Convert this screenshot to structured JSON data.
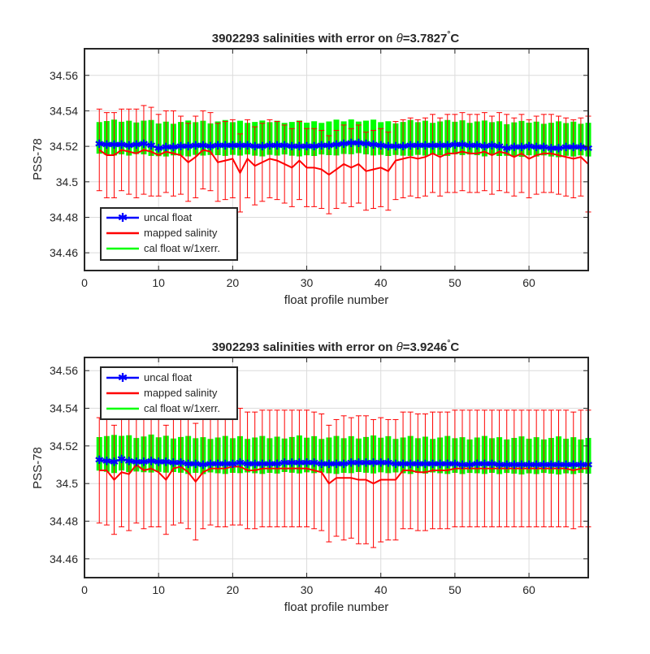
{
  "chart_data": [
    {
      "type": "line",
      "title_prefix": "3902293 salinities with error on ",
      "title_theta": "θ",
      "title_value": "=3.7827",
      "title_degree": "°",
      "title_unit": "C",
      "xlabel": "float profile number",
      "ylabel": "PSS-78",
      "xlim": [
        0,
        68
      ],
      "ylim": [
        34.45,
        34.575
      ],
      "xticks": [
        "0",
        "10",
        "20",
        "30",
        "40",
        "50",
        "60"
      ],
      "yticks": [
        "34.46",
        "34.48",
        "34.5",
        "34.52",
        "34.54",
        "34.56"
      ],
      "grid": true,
      "legend_position": "bottom-left",
      "legend": [
        "uncal float",
        "mapped salinity",
        "cal float w/1xerr."
      ],
      "x": [
        2,
        3,
        4,
        5,
        6,
        7,
        8,
        9,
        10,
        11,
        12,
        13,
        14,
        15,
        16,
        17,
        18,
        19,
        20,
        21,
        22,
        23,
        24,
        25,
        26,
        27,
        28,
        29,
        30,
        31,
        32,
        33,
        34,
        35,
        36,
        37,
        38,
        39,
        40,
        41,
        42,
        43,
        44,
        45,
        46,
        47,
        48,
        49,
        50,
        51,
        52,
        53,
        54,
        55,
        56,
        57,
        58,
        59,
        60,
        61,
        62,
        63,
        64,
        65,
        66,
        67,
        68
      ],
      "series": [
        {
          "name": "uncal float",
          "color": "#0000ff",
          "values": [
            34.5215,
            34.521,
            34.521,
            34.521,
            34.5205,
            34.521,
            34.5215,
            34.5205,
            34.519,
            34.5195,
            34.5195,
            34.52,
            34.52,
            34.5205,
            34.5205,
            34.52,
            34.5205,
            34.5205,
            34.5205,
            34.5205,
            34.5205,
            34.52,
            34.52,
            34.5205,
            34.5205,
            34.5205,
            34.52,
            34.52,
            34.52,
            34.52,
            34.5205,
            34.5205,
            34.521,
            34.5215,
            34.522,
            34.522,
            34.5215,
            34.521,
            34.5205,
            34.52,
            34.52,
            34.52,
            34.5205,
            34.5205,
            34.5205,
            34.5205,
            34.5205,
            34.5205,
            34.521,
            34.521,
            34.5205,
            34.5205,
            34.52,
            34.5205,
            34.52,
            34.519,
            34.5195,
            34.5195,
            34.52,
            34.5195,
            34.5195,
            34.519,
            34.519,
            34.5195,
            34.5195,
            34.5195,
            34.519
          ]
        },
        {
          "name": "mapped salinity",
          "color": "#ff0000",
          "values": [
            34.518,
            34.515,
            34.515,
            34.518,
            34.517,
            34.516,
            34.518,
            34.517,
            34.515,
            34.517,
            34.516,
            34.515,
            34.511,
            34.514,
            34.518,
            34.517,
            34.511,
            34.512,
            34.513,
            34.505,
            34.513,
            34.509,
            34.511,
            34.513,
            34.512,
            34.51,
            34.508,
            34.512,
            34.508,
            34.508,
            34.507,
            34.504,
            34.507,
            34.51,
            34.508,
            34.51,
            34.506,
            34.507,
            34.508,
            34.506,
            34.512,
            34.513,
            34.514,
            34.513,
            34.514,
            34.516,
            34.514,
            34.516,
            34.516,
            34.517,
            34.516,
            34.516,
            34.517,
            34.515,
            34.517,
            34.516,
            34.514,
            34.516,
            34.513,
            34.515,
            34.516,
            34.516,
            34.515,
            34.514,
            34.513,
            34.514,
            34.51
          ],
          "error": [
            0.023,
            0.024,
            0.024,
            0.023,
            0.024,
            0.025,
            0.025,
            0.025,
            0.023,
            0.023,
            0.024,
            0.022,
            0.022,
            0.023,
            0.022,
            0.022,
            0.022,
            0.022,
            0.022,
            0.022,
            0.022,
            0.022,
            0.022,
            0.022,
            0.022,
            0.022,
            0.022,
            0.022,
            0.022,
            0.022,
            0.022,
            0.022,
            0.022,
            0.022,
            0.022,
            0.022,
            0.022,
            0.022,
            0.022,
            0.022,
            0.022,
            0.022,
            0.022,
            0.022,
            0.022,
            0.022,
            0.022,
            0.022,
            0.022,
            0.022,
            0.022,
            0.022,
            0.022,
            0.022,
            0.022,
            0.022,
            0.022,
            0.022,
            0.022,
            0.022,
            0.022,
            0.022,
            0.022,
            0.022,
            0.022,
            0.022,
            0.027
          ]
        },
        {
          "name": "cal float w/1xerr.",
          "color": "#00ff00",
          "center": 34.525,
          "halfwidth": 0.0095
        }
      ]
    },
    {
      "type": "line",
      "title_prefix": "3902293 salinities with error on ",
      "title_theta": "θ",
      "title_value": "=3.9246",
      "title_degree": "°",
      "title_unit": "C",
      "xlabel": "float profile number",
      "ylabel": "PSS-78",
      "xlim": [
        0,
        68
      ],
      "ylim": [
        34.45,
        34.567
      ],
      "xticks": [
        "0",
        "10",
        "20",
        "30",
        "40",
        "50",
        "60"
      ],
      "yticks": [
        "34.46",
        "34.48",
        "34.5",
        "34.52",
        "34.54",
        "34.56"
      ],
      "grid": true,
      "legend_position": "top-left",
      "legend": [
        "uncal float",
        "mapped salinity",
        "cal float w/1xerr."
      ],
      "x": [
        2,
        3,
        4,
        5,
        6,
        7,
        8,
        9,
        10,
        11,
        12,
        13,
        14,
        15,
        16,
        17,
        18,
        19,
        20,
        21,
        22,
        23,
        24,
        25,
        26,
        27,
        28,
        29,
        30,
        31,
        32,
        33,
        34,
        35,
        36,
        37,
        38,
        39,
        40,
        41,
        42,
        43,
        44,
        45,
        46,
        47,
        48,
        49,
        50,
        51,
        52,
        53,
        54,
        55,
        56,
        57,
        58,
        59,
        60,
        61,
        62,
        63,
        64,
        65,
        66,
        67,
        68
      ],
      "series": [
        {
          "name": "uncal float",
          "color": "#0000ff",
          "values": [
            34.5125,
            34.512,
            34.5115,
            34.513,
            34.512,
            34.5115,
            34.5115,
            34.512,
            34.5115,
            34.5115,
            34.511,
            34.511,
            34.5105,
            34.5105,
            34.51,
            34.5105,
            34.5105,
            34.5105,
            34.5105,
            34.511,
            34.5105,
            34.5105,
            34.5105,
            34.5105,
            34.5105,
            34.511,
            34.511,
            34.511,
            34.511,
            34.511,
            34.5105,
            34.5105,
            34.5105,
            34.5105,
            34.511,
            34.511,
            34.511,
            34.511,
            34.511,
            34.511,
            34.5105,
            34.5105,
            34.5105,
            34.5105,
            34.5105,
            34.5105,
            34.5105,
            34.5105,
            34.5105,
            34.51,
            34.51,
            34.5105,
            34.5105,
            34.5105,
            34.51,
            34.51,
            34.51,
            34.51,
            34.51,
            34.51,
            34.51,
            34.51,
            34.51,
            34.51,
            34.51,
            34.51,
            34.51
          ]
        },
        {
          "name": "mapped salinity",
          "color": "#ff0000",
          "values": [
            34.507,
            34.507,
            34.502,
            34.506,
            34.505,
            34.51,
            34.507,
            34.508,
            34.506,
            34.502,
            34.508,
            34.509,
            34.506,
            34.501,
            34.506,
            34.508,
            34.508,
            34.508,
            34.509,
            34.509,
            34.507,
            34.507,
            34.508,
            34.508,
            34.508,
            34.508,
            34.508,
            34.508,
            34.508,
            34.507,
            34.506,
            34.5,
            34.503,
            34.503,
            34.503,
            34.502,
            34.502,
            34.5,
            34.502,
            34.502,
            34.502,
            34.507,
            34.507,
            34.506,
            34.506,
            34.507,
            34.507,
            34.507,
            34.508,
            34.508,
            34.508,
            34.508,
            34.508,
            34.508,
            34.508,
            34.508,
            34.508,
            34.508,
            34.508,
            34.508,
            34.508,
            34.508,
            34.508,
            34.508,
            34.507,
            34.508,
            34.508
          ],
          "error": [
            0.028,
            0.029,
            0.029,
            0.029,
            0.03,
            0.031,
            0.031,
            0.031,
            0.029,
            0.029,
            0.03,
            0.03,
            0.03,
            0.031,
            0.03,
            0.03,
            0.031,
            0.031,
            0.031,
            0.031,
            0.031,
            0.031,
            0.031,
            0.031,
            0.031,
            0.031,
            0.031,
            0.031,
            0.031,
            0.031,
            0.031,
            0.031,
            0.031,
            0.033,
            0.032,
            0.034,
            0.034,
            0.034,
            0.033,
            0.032,
            0.032,
            0.031,
            0.031,
            0.031,
            0.031,
            0.031,
            0.031,
            0.031,
            0.031,
            0.031,
            0.031,
            0.031,
            0.031,
            0.031,
            0.031,
            0.031,
            0.031,
            0.031,
            0.031,
            0.031,
            0.031,
            0.031,
            0.031,
            0.031,
            0.031,
            0.031,
            0.031
          ]
        },
        {
          "name": "cal float w/1xerr.",
          "color": "#00ff00",
          "center": 34.516,
          "halfwidth": 0.0095
        }
      ]
    }
  ]
}
